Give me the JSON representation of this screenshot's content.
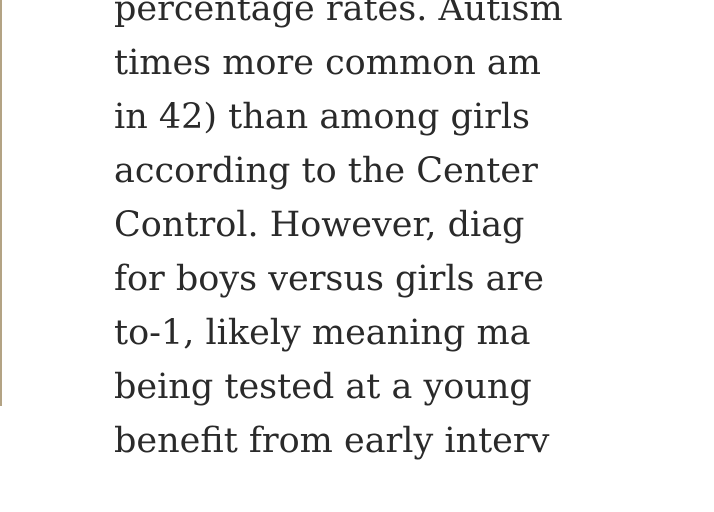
{
  "article": {
    "lines": [
      "percentage rates. Autism",
      "times more common am",
      "in 42) than among girls",
      "according to the Center",
      "Control. However, diag",
      "for boys versus girls are",
      "to-1, likely meaning ma",
      "being tested at a young",
      "benefit from early interv"
    ]
  },
  "colors": {
    "text": "#2a2a2a",
    "left_rule": "#b3a384",
    "background": "#ffffff"
  }
}
